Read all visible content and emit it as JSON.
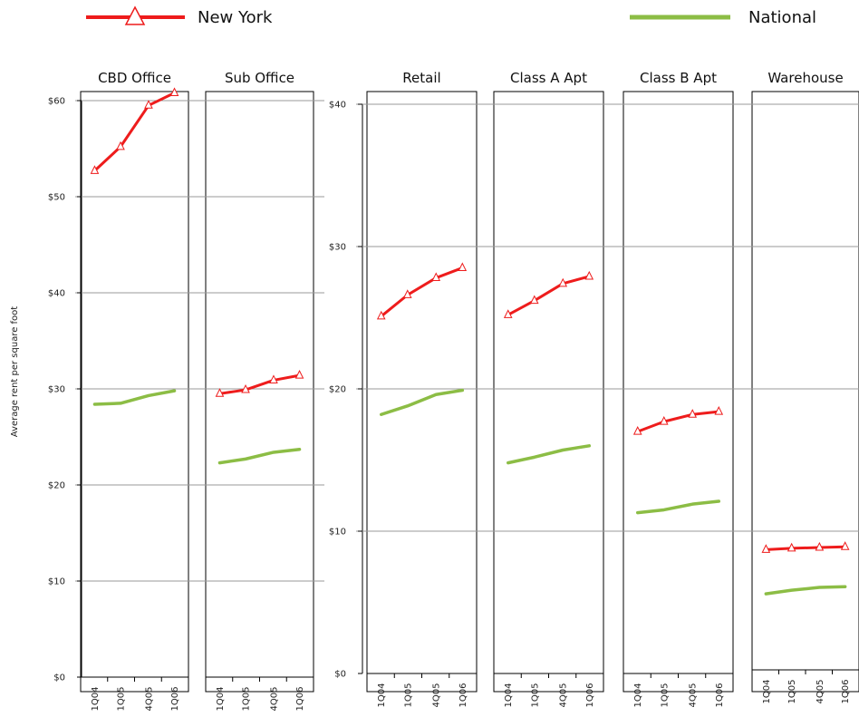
{
  "legend": {
    "ny_label": "New York",
    "national_label": "National"
  },
  "colors": {
    "new_york": "#ee1c1c",
    "national": "#8cbd45",
    "grid": "#9a9a9a",
    "frame": "#000000"
  },
  "ylabel": "Average rent per square foot",
  "categories": [
    "1Q04",
    "1Q05",
    "4Q05",
    "1Q06"
  ],
  "chart_data": [
    {
      "type": "line",
      "title": "CBD Office",
      "categories": [
        "1Q04",
        "1Q05",
        "4Q05",
        "1Q06"
      ],
      "series": [
        {
          "name": "New York",
          "values": [
            52.7,
            55.2,
            59.5,
            60.8
          ]
        },
        {
          "name": "National",
          "values": [
            28.4,
            28.5,
            29.3,
            29.8
          ]
        }
      ],
      "ylim": [
        0,
        60
      ],
      "yticks": [
        "$0",
        "$10",
        "$20",
        "$30",
        "$40",
        "$50",
        "$60"
      ],
      "grid": true
    },
    {
      "type": "line",
      "title": "Sub Office",
      "categories": [
        "1Q04",
        "1Q05",
        "4Q05",
        "1Q06"
      ],
      "series": [
        {
          "name": "New York",
          "values": [
            29.5,
            29.9,
            30.9,
            31.4
          ]
        },
        {
          "name": "National",
          "values": [
            22.3,
            22.7,
            23.4,
            23.7
          ]
        }
      ],
      "ylim": [
        0,
        60
      ],
      "grid": true
    },
    {
      "type": "line",
      "title": "Retail",
      "categories": [
        "1Q04",
        "1Q05",
        "4Q05",
        "1Q06"
      ],
      "series": [
        {
          "name": "New York",
          "values": [
            25.1,
            26.6,
            27.8,
            28.5
          ]
        },
        {
          "name": "National",
          "values": [
            18.2,
            18.8,
            19.6,
            19.9
          ]
        }
      ],
      "ylim": [
        0,
        40
      ],
      "yticks": [
        "$0",
        "$10",
        "$20",
        "$30",
        "$40"
      ],
      "grid": true
    },
    {
      "type": "line",
      "title": "Class A Apt",
      "categories": [
        "1Q04",
        "1Q05",
        "4Q05",
        "1Q06"
      ],
      "series": [
        {
          "name": "New York",
          "values": [
            25.2,
            26.2,
            27.4,
            27.9
          ]
        },
        {
          "name": "National",
          "values": [
            14.8,
            15.2,
            15.7,
            16.0
          ]
        }
      ],
      "ylim": [
        0,
        40
      ],
      "grid": true
    },
    {
      "type": "line",
      "title": "Class B Apt",
      "categories": [
        "1Q04",
        "1Q05",
        "4Q05",
        "1Q06"
      ],
      "series": [
        {
          "name": "New York",
          "values": [
            17.0,
            17.7,
            18.2,
            18.4
          ]
        },
        {
          "name": "National",
          "values": [
            11.3,
            11.5,
            11.9,
            12.1
          ]
        }
      ],
      "ylim": [
        0,
        40
      ],
      "grid": true
    },
    {
      "type": "line",
      "title": "Warehouse",
      "categories": [
        "1Q04",
        "1Q05",
        "4Q05",
        "1Q06"
      ],
      "series": [
        {
          "name": "New York",
          "values": [
            8.7,
            8.8,
            8.85,
            8.9
          ]
        },
        {
          "name": "National",
          "values": [
            5.6,
            5.85,
            6.05,
            6.1
          ]
        }
      ],
      "ylim": [
        0,
        40
      ],
      "grid": true
    }
  ]
}
